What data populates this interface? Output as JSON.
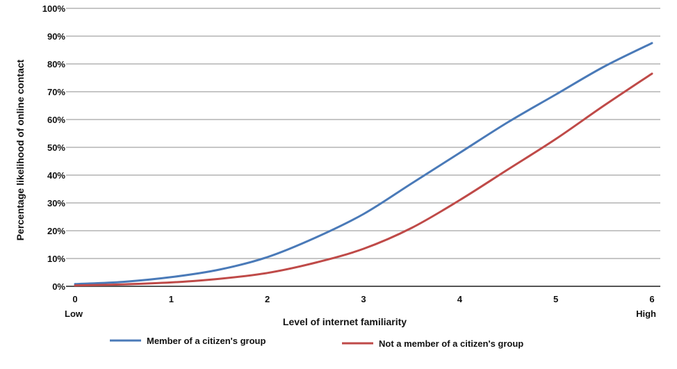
{
  "chart_data": {
    "type": "line",
    "xlabel": "Level of internet familiarity",
    "ylabel": "Percentage likelihood of online contact",
    "xlim": [
      0,
      6
    ],
    "ylim": [
      0,
      100
    ],
    "x_ticks": [
      "0",
      "1",
      "2",
      "3",
      "4",
      "5",
      "6"
    ],
    "x_low_label": "Low",
    "x_high_label": "High",
    "y_ticks": [
      "0%",
      "10%",
      "20%",
      "30%",
      "40%",
      "50%",
      "60%",
      "70%",
      "80%",
      "90%",
      "100%"
    ],
    "grid": true,
    "legend_position": "bottom",
    "series": [
      {
        "name": "Member of a citizen's group",
        "color": "#4a7ab8",
        "x": [
          0,
          0.5,
          1,
          1.5,
          2,
          2.5,
          3,
          3.5,
          4,
          4.5,
          5,
          5.5,
          6
        ],
        "y": [
          0.8,
          1.6,
          3.3,
          6,
          10.5,
          17.5,
          26,
          37,
          48,
          59,
          69,
          79,
          87.5
        ]
      },
      {
        "name": "Not a member of a citizen's group",
        "color": "#bf4a48",
        "x": [
          0,
          0.5,
          1,
          1.5,
          2,
          2.5,
          3,
          3.5,
          4,
          4.5,
          5,
          5.5,
          6
        ],
        "y": [
          0.3,
          0.7,
          1.4,
          2.7,
          4.8,
          8.5,
          13.5,
          21,
          31,
          42,
          53,
          65,
          76.5
        ]
      }
    ]
  }
}
